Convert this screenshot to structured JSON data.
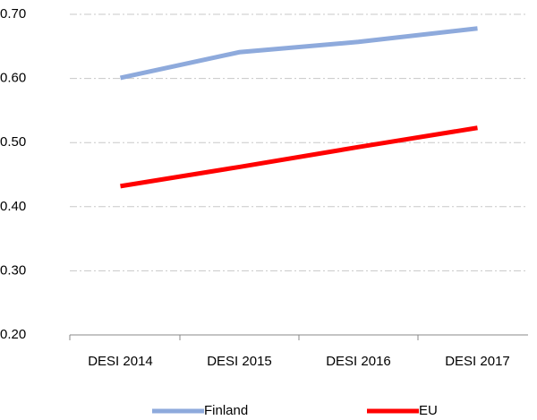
{
  "chart_data": {
    "type": "line",
    "categories": [
      "DESI 2014",
      "DESI 2015",
      "DESI 2016",
      "DESI 2017"
    ],
    "series": [
      {
        "name": "Finland",
        "color": "#8eaadc",
        "values": [
          0.601,
          0.641,
          0.657,
          0.678
        ]
      },
      {
        "name": "EU",
        "color": "#ff0000",
        "values": [
          0.432,
          0.462,
          0.493,
          0.523
        ]
      }
    ],
    "ylim": [
      0.2,
      0.7
    ],
    "yticks": [
      {
        "value": 0.2,
        "label": "0.20"
      },
      {
        "value": 0.3,
        "label": "0.30"
      },
      {
        "value": 0.4,
        "label": "0.40"
      },
      {
        "value": 0.5,
        "label": "0.50"
      },
      {
        "value": 0.6,
        "label": "0.60"
      },
      {
        "value": 0.7,
        "label": "0.70"
      }
    ],
    "grid": true,
    "legend": "bottom"
  }
}
